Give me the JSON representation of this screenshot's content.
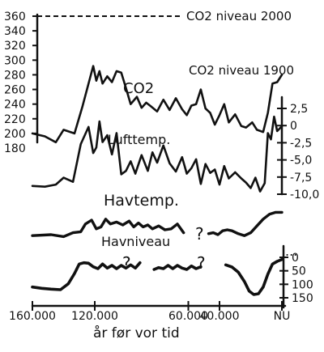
{
  "chart_data": {
    "type": "line",
    "x_label": "år før vor tid",
    "x_axis": {
      "range": [
        160000,
        0
      ],
      "ticks": [
        {
          "value": 160000,
          "label": "160.000"
        },
        {
          "value": 120000,
          "label": "120.000"
        },
        {
          "value": 60000,
          "label": "60.000"
        },
        {
          "value": 40000,
          "label": "40.000"
        },
        {
          "value": 0,
          "label": "NU"
        }
      ]
    },
    "left_axis": {
      "quantity": "CO2",
      "range": [
        180,
        360
      ],
      "tick_labels": [
        "360",
        "340",
        "320",
        "300",
        "280",
        "260",
        "240",
        "220",
        "200",
        "180"
      ]
    },
    "right_axis_temp": {
      "quantity": "Lufttemp.",
      "range": [
        -10,
        2.5
      ],
      "tick_labels": [
        "2,5",
        "0",
        "-2,5",
        "-5,0",
        "-7,5",
        "-10,0"
      ]
    },
    "right_axis_sea": {
      "quantity": "Havniveau",
      "range": [
        0,
        150
      ],
      "tick_labels": [
        "0",
        "50",
        "100",
        "150"
      ],
      "inverted": true
    },
    "reference_line": {
      "label": "CO2 niveau 2000",
      "value": 360
    },
    "annotations": [
      {
        "text": "CO2 niveau 1900",
        "value": 280
      }
    ],
    "series": [
      {
        "name": "CO2",
        "axis": "left",
        "x": [
          160000,
          152000,
          145000,
          140000,
          133000,
          128000,
          124000,
          121000,
          119000,
          117000,
          115000,
          112000,
          109000,
          106000,
          103000,
          100000,
          97000,
          93000,
          90000,
          87000,
          84000,
          80000,
          76000,
          72000,
          68000,
          64000,
          61000,
          58000,
          55000,
          52000,
          49000,
          46000,
          43000,
          40000,
          37000,
          34000,
          30000,
          26000,
          23000,
          19000,
          16000,
          12000,
          9000,
          6000,
          3000,
          0
        ],
        "y": [
          200,
          196,
          188,
          205,
          200,
          236,
          268,
          292,
          272,
          285,
          268,
          278,
          270,
          285,
          283,
          262,
          240,
          250,
          235,
          242,
          237,
          230,
          246,
          232,
          248,
          233,
          225,
          238,
          240,
          260,
          234,
          228,
          212,
          225,
          240,
          215,
          226,
          210,
          208,
          215,
          205,
          202,
          228,
          268,
          270,
          280
        ]
      },
      {
        "name": "Lufttemp.",
        "axis": "right_temp",
        "x": [
          160000,
          152000,
          145000,
          140000,
          134000,
          129000,
          124000,
          121000,
          119000,
          117000,
          115000,
          112000,
          109000,
          106000,
          103000,
          100000,
          97000,
          94000,
          90000,
          86000,
          83000,
          80000,
          76000,
          72000,
          68000,
          64000,
          61000,
          58000,
          55000,
          52000,
          49000,
          46000,
          43000,
          40000,
          37000,
          34000,
          30000,
          26000,
          23000,
          20000,
          17000,
          14000,
          11000,
          9000,
          7000,
          5000,
          3000,
          0
        ],
        "y": [
          -8.8,
          -8.9,
          -8.6,
          -7.6,
          -8.2,
          -2.7,
          -0.2,
          -4.0,
          -3.2,
          0.6,
          -2.4,
          -1.4,
          -4.2,
          -1.1,
          -7.1,
          -6.6,
          -5.2,
          -7.0,
          -4.3,
          -6.6,
          -3.9,
          -5.4,
          -2.9,
          -5.5,
          -6.7,
          -4.6,
          -7.0,
          -6.2,
          -4.9,
          -8.5,
          -5.6,
          -6.9,
          -6.4,
          -8.6,
          -5.9,
          -7.7,
          -6.8,
          -7.7,
          -8.3,
          -9.1,
          -7.6,
          -9.6,
          -8.4,
          -1.1,
          -2.0,
          1.3,
          -0.8,
          -0.1
        ]
      },
      {
        "name": "Havtemp.",
        "axis": "none",
        "x": [
          160000,
          148000,
          140000,
          134000,
          129000,
          126000,
          122000,
          119000,
          116000,
          113000,
          110000,
          106000,
          102000,
          98000,
          95000,
          92000,
          89000,
          86000,
          83000,
          79000,
          75000,
          71000,
          67000,
          63000,
          59000,
          55000,
          51000,
          47000,
          44000,
          41000,
          38000,
          35000,
          32000,
          28000,
          24000,
          20000,
          16000,
          12000,
          8000,
          4000,
          0
        ],
        "y": [
          1.4,
          1.5,
          1.3,
          1.7,
          1.8,
          2.6,
          3.0,
          2.1,
          2.3,
          3.1,
          2.6,
          2.8,
          2.5,
          2.9,
          2.3,
          2.7,
          2.3,
          2.5,
          2.1,
          2.4,
          2.0,
          2.1,
          2.6,
          1.7,
          1.8,
          1.5,
          1.9,
          1.6,
          1.7,
          1.5,
          1.9,
          2.0,
          1.9,
          1.6,
          1.4,
          1.7,
          2.4,
          3.1,
          3.6,
          3.8,
          3.8
        ],
        "gap": [
          61000,
          47000
        ]
      },
      {
        "name": "Havniveau",
        "axis": "right_sea",
        "x": [
          160000,
          154000,
          148000,
          142000,
          137000,
          133000,
          130000,
          127000,
          124000,
          121000,
          118000,
          115000,
          112000,
          109000,
          106000,
          103000,
          100000,
          97000,
          94000,
          91000,
          82000,
          79000,
          76000,
          73000,
          70000,
          67000,
          64000,
          61000,
          58000,
          55000,
          52000,
          36000,
          32000,
          28000,
          24000,
          21000,
          18000,
          15000,
          12000,
          9000,
          6000,
          3000,
          0
        ],
        "y": [
          110,
          115,
          118,
          120,
          98,
          60,
          25,
          20,
          22,
          35,
          42,
          25,
          40,
          30,
          42,
          30,
          40,
          28,
          40,
          20,
          45,
          38,
          42,
          30,
          42,
          30,
          40,
          45,
          32,
          42,
          35,
          28,
          36,
          55,
          90,
          125,
          138,
          135,
          110,
          62,
          25,
          15,
          8
        ],
        "gaps": [
          [
            91000,
            82000
          ],
          [
            52000,
            36000
          ]
        ]
      }
    ]
  }
}
